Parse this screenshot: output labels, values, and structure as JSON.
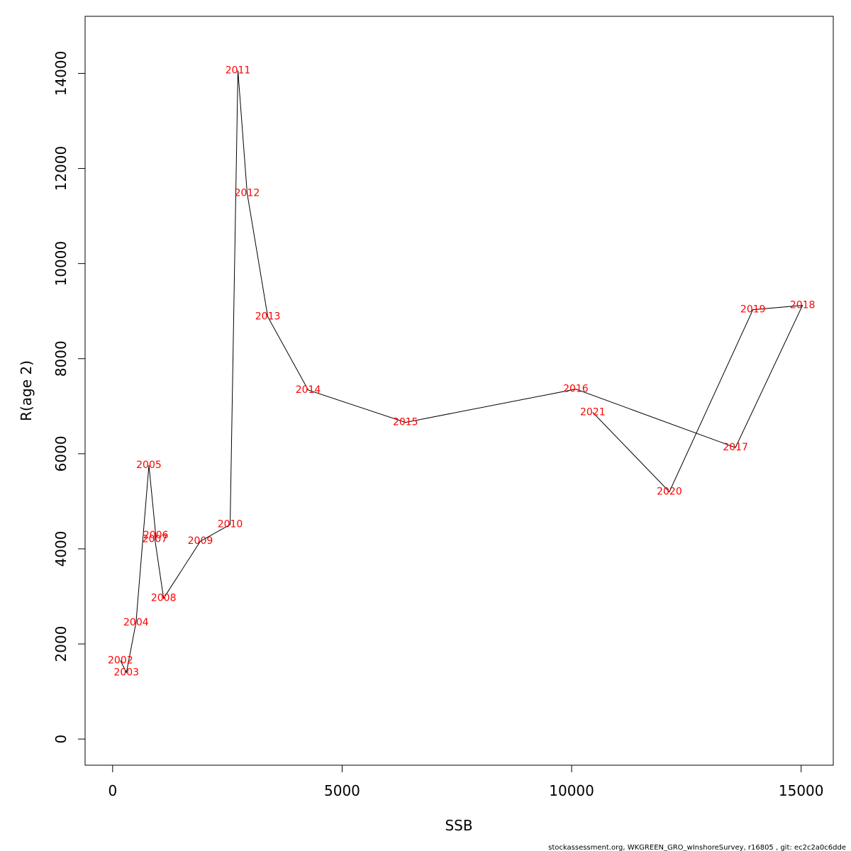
{
  "chart_data": {
    "type": "line",
    "title": "",
    "xlabel": "SSB",
    "ylabel": "R(age 2)",
    "xlim": [
      -600,
      15700
    ],
    "ylim": [
      -550,
      15200
    ],
    "grid": false,
    "x_ticks": [
      0,
      5000,
      10000,
      15000
    ],
    "y_ticks": [
      0,
      2000,
      4000,
      6000,
      8000,
      10000,
      12000,
      14000
    ],
    "line_color": "#000000",
    "label_color": "#ff0000",
    "points": [
      {
        "label": "2002",
        "x": 170,
        "y": 1650
      },
      {
        "label": "2003",
        "x": 300,
        "y": 1400
      },
      {
        "label": "2004",
        "x": 510,
        "y": 2450
      },
      {
        "label": "2005",
        "x": 790,
        "y": 5760
      },
      {
        "label": "2006",
        "x": 940,
        "y": 4280
      },
      {
        "label": "2007",
        "x": 920,
        "y": 4200
      },
      {
        "label": "2008",
        "x": 1110,
        "y": 2960
      },
      {
        "label": "2009",
        "x": 1910,
        "y": 4160
      },
      {
        "label": "2010",
        "x": 2560,
        "y": 4510
      },
      {
        "label": "2011",
        "x": 2730,
        "y": 14060
      },
      {
        "label": "2012",
        "x": 2930,
        "y": 11480
      },
      {
        "label": "2013",
        "x": 3380,
        "y": 8880
      },
      {
        "label": "2014",
        "x": 4260,
        "y": 7340
      },
      {
        "label": "2015",
        "x": 6380,
        "y": 6660
      },
      {
        "label": "2016",
        "x": 10090,
        "y": 7360
      },
      {
        "label": "2017",
        "x": 13570,
        "y": 6130
      },
      {
        "label": "2018",
        "x": 15030,
        "y": 9120
      },
      {
        "label": "2019",
        "x": 13950,
        "y": 9030
      },
      {
        "label": "2020",
        "x": 12130,
        "y": 5200
      },
      {
        "label": "2021",
        "x": 10460,
        "y": 6870
      }
    ]
  },
  "footer_text": "stockassessment.org, WKGREEN_GRO_wInshoreSurvey, r16805 , git: ec2c2a0c6dde"
}
